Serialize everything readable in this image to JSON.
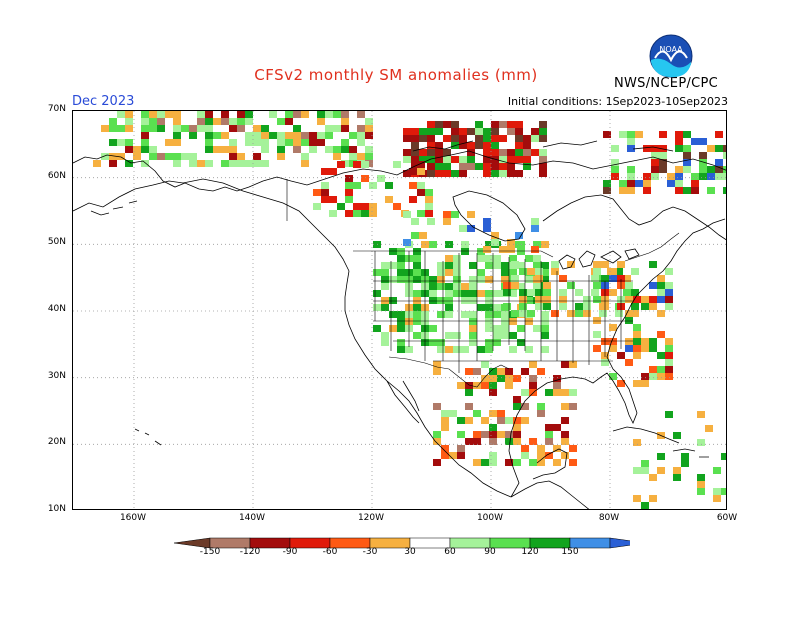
{
  "header": {
    "title": "CFSv2 monthly SM anomalies (mm)",
    "month": "Dec 2023",
    "initial_conditions": "Initial conditions: 1Sep2023-10Sep2023",
    "agency": "NWS/NCEP/CPC",
    "logo_text": "NOAA"
  },
  "axes": {
    "lat_labels": [
      "70N",
      "60N",
      "50N",
      "40N",
      "30N",
      "20N",
      "10N"
    ],
    "lon_labels": [
      "160W",
      "140W",
      "120W",
      "100W",
      "80W",
      "60W"
    ]
  },
  "colorbar": {
    "labels": [
      "-150",
      "-120",
      "-90",
      "-60",
      "-30",
      "30",
      "60",
      "90",
      "120",
      "150"
    ],
    "colors": [
      "#6b3a28",
      "#b07a68",
      "#a30c0c",
      "#e01a0a",
      "#ff5a14",
      "#f6b040",
      "#ffffff",
      "#a5f29a",
      "#5ae050",
      "#12a41e",
      "#3f8fe6",
      "#2a5fd5"
    ]
  },
  "colors": {
    "title": "#e0301e",
    "month": "#2a4bd7",
    "map_land_line": "#000000",
    "grid": "#999999"
  }
}
